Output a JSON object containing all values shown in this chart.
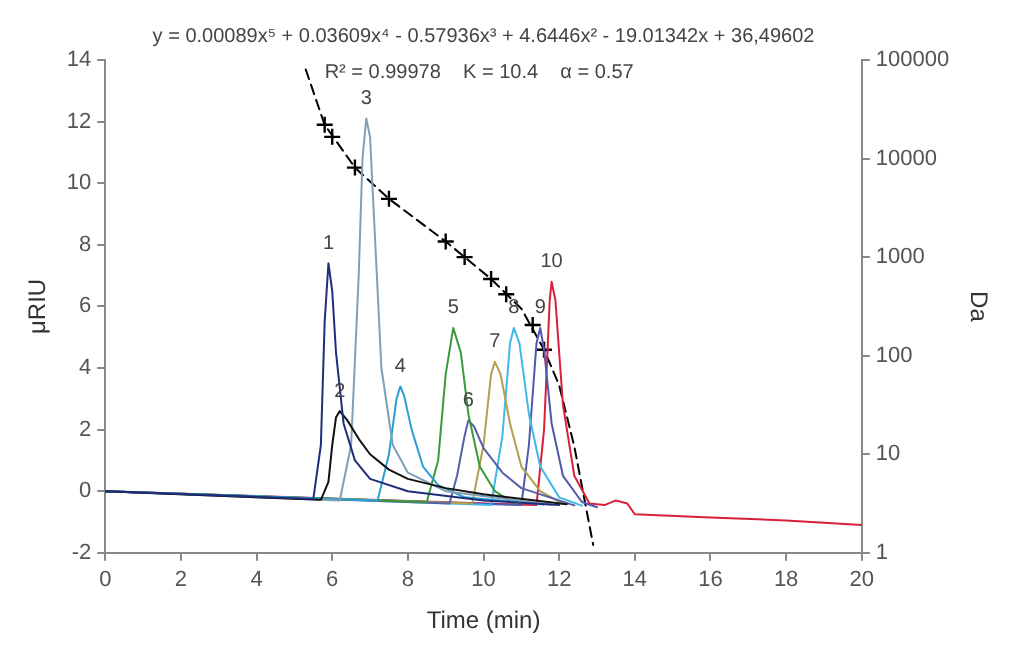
{
  "chart_data": {
    "type": "line",
    "xlabel": "Time (min)",
    "ylabel": "μRIU",
    "y2label": "Da",
    "xlim": [
      0,
      20
    ],
    "xticks": [
      0,
      2,
      4,
      6,
      8,
      10,
      12,
      14,
      16,
      18,
      20
    ],
    "ylim": [
      -2,
      14
    ],
    "yticks": [
      -2,
      0,
      2,
      4,
      6,
      8,
      10,
      12,
      14
    ],
    "y2lim": [
      1,
      100000
    ],
    "y2ticks": [
      1,
      10,
      100,
      1000,
      10000,
      100000
    ],
    "log": "y2",
    "grid": false,
    "marker": "none",
    "annotations": [
      "y = 0.00089x⁵ + 0.03609x⁴ - 0.57936x³ + 4.6446x² - 19.01342x + 36,49602",
      "R² = 0.99978    K = 10.4    α = 0.57",
      {
        "text": "1",
        "x": 5.9,
        "y": 7.4
      },
      {
        "text": "2",
        "x": 6.2,
        "y": 2.6
      },
      {
        "text": "3",
        "x": 6.9,
        "y": 12.1
      },
      {
        "text": "4",
        "x": 7.8,
        "y": 3.4
      },
      {
        "text": "5",
        "x": 9.2,
        "y": 5.3
      },
      {
        "text": "6",
        "x": 9.6,
        "y": 2.3
      },
      {
        "text": "7",
        "x": 10.3,
        "y": 4.2
      },
      {
        "text": "8",
        "x": 10.8,
        "y": 5.3
      },
      {
        "text": "9",
        "x": 11.5,
        "y": 5.3
      },
      {
        "text": "10",
        "x": 11.8,
        "y": 6.8
      }
    ],
    "series": [
      {
        "color": "#1f2d7a",
        "x": [
          0,
          5.5,
          5.7,
          5.8,
          5.9,
          6.0,
          6.1,
          6.3,
          6.6,
          7.0,
          8,
          10,
          12
        ],
        "values": [
          0,
          -0.25,
          1.5,
          5.5,
          7.4,
          6.5,
          4.5,
          2.2,
          1.0,
          0.4,
          0.0,
          -0.3,
          -0.45
        ]
      },
      {
        "color": "#111111",
        "x": [
          0,
          5.7,
          5.9,
          6.0,
          6.1,
          6.2,
          6.4,
          6.7,
          7.0,
          7.5,
          8.0,
          9.0,
          10,
          12.2
        ],
        "values": [
          0,
          -0.28,
          0.3,
          1.5,
          2.4,
          2.6,
          2.3,
          1.7,
          1.2,
          0.7,
          0.4,
          0.1,
          -0.1,
          -0.42
        ]
      },
      {
        "color": "#7f9fb5",
        "x": [
          0,
          6.2,
          6.5,
          6.7,
          6.8,
          6.9,
          7.0,
          7.1,
          7.3,
          7.6,
          8.0,
          9,
          11.8
        ],
        "values": [
          0,
          -0.3,
          1.5,
          7,
          10.8,
          12.1,
          11.5,
          9,
          4,
          1.5,
          0.6,
          0.0,
          -0.44
        ]
      },
      {
        "color": "#2a9fd6",
        "x": [
          0,
          7.2,
          7.5,
          7.7,
          7.8,
          7.9,
          8.1,
          8.4,
          8.8,
          9.5,
          11.6
        ],
        "values": [
          0,
          -0.3,
          1.2,
          3.0,
          3.4,
          3.1,
          2.0,
          0.8,
          0.2,
          -0.2,
          -0.43
        ]
      },
      {
        "color": "#3a9a3a",
        "x": [
          0,
          8.5,
          8.8,
          9.0,
          9.2,
          9.4,
          9.6,
          9.9,
          10.3,
          10.8
        ],
        "values": [
          0,
          -0.35,
          1.0,
          3.8,
          5.3,
          4.5,
          2.5,
          0.8,
          0.0,
          -0.4
        ]
      },
      {
        "color": "#5560a8",
        "x": [
          0,
          9.1,
          9.3,
          9.5,
          9.6,
          9.75,
          10.0,
          10.5,
          11,
          12.4
        ],
        "values": [
          0,
          -0.4,
          0.5,
          1.8,
          2.3,
          2.1,
          1.4,
          0.6,
          0.1,
          -0.46
        ]
      },
      {
        "color": "#b0a050",
        "x": [
          0,
          9.7,
          10.0,
          10.2,
          10.3,
          10.45,
          10.7,
          11.0,
          11.5,
          12.1
        ],
        "values": [
          0,
          -0.4,
          1.5,
          3.8,
          4.2,
          3.8,
          2.2,
          0.8,
          0.0,
          -0.41
        ]
      },
      {
        "color": "#40b8e8",
        "x": [
          0,
          10.2,
          10.5,
          10.7,
          10.8,
          10.95,
          11.2,
          11.5,
          12,
          12.6
        ],
        "values": [
          0,
          -0.45,
          1.8,
          4.8,
          5.3,
          4.8,
          2.5,
          0.8,
          -0.2,
          -0.47
        ]
      },
      {
        "color": "#5058b0",
        "x": [
          0,
          11.0,
          11.2,
          11.4,
          11.5,
          11.6,
          11.8,
          12.1,
          12.6,
          13.0
        ],
        "values": [
          0,
          -0.45,
          1.5,
          4.8,
          5.3,
          4.6,
          2.2,
          0.5,
          -0.35,
          -0.52
        ]
      },
      {
        "color": "#d8203c",
        "x": [
          0,
          11.4,
          11.6,
          11.75,
          11.8,
          11.9,
          12.1,
          12.4,
          12.8,
          13.2,
          13.5,
          13.8,
          14,
          16,
          18,
          20
        ],
        "values": [
          0,
          -0.45,
          2.0,
          6.2,
          6.8,
          6.2,
          2.8,
          0.5,
          -0.4,
          -0.45,
          -0.3,
          -0.4,
          -0.75,
          -0.85,
          -0.95,
          -1.1
        ]
      },
      {
        "type": "line",
        "axis": "y2",
        "color": "#000000",
        "line_style": "dashed",
        "x": [
          5.3,
          5.8,
          6.6,
          7.5,
          9.0,
          10.2,
          11.0,
          11.6,
          12.0,
          12.4,
          12.7,
          12.9
        ],
        "values": [
          80000,
          22000,
          8100,
          3900,
          1440,
          600,
          300,
          115,
          50,
          12,
          3,
          1.2
        ]
      },
      {
        "type": "scatter",
        "axis": "y2",
        "color": "#000000",
        "marker": "cross",
        "x": [
          5.8,
          6.0,
          6.6,
          7.5,
          9.0,
          9.5,
          10.2,
          10.6,
          11.3,
          11.6
        ],
        "values": [
          22000,
          16600,
          8100,
          3900,
          1440,
          1000,
          600,
          420,
          205,
          115
        ]
      }
    ]
  }
}
